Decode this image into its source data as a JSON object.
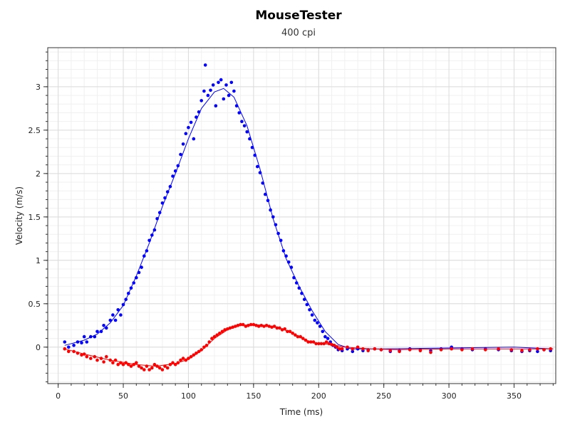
{
  "chart_data": {
    "type": "scatter",
    "title": "MouseTester",
    "subtitle": "400 cpi",
    "xlabel": "Time (ms)",
    "ylabel": "Velocity (m/s)",
    "xlim": [
      -8,
      382
    ],
    "ylim": [
      -0.42,
      3.45
    ],
    "x_ticks": [
      0,
      50,
      100,
      150,
      200,
      250,
      300,
      350
    ],
    "x_tick_labels": [
      "0",
      "50",
      "100",
      "150",
      "200",
      "250",
      "300",
      "350"
    ],
    "y_ticks": [
      0,
      0.5,
      1,
      1.5,
      2,
      2.5,
      3
    ],
    "y_tick_labels": [
      "0",
      "0.5",
      "1",
      "1.5",
      "2",
      "2.5",
      "3"
    ],
    "grid": true,
    "series": [
      {
        "color": "#0000ff",
        "points": [
          [
            5,
            0.06
          ],
          [
            8,
            0.0
          ],
          [
            12,
            0.02
          ],
          [
            15,
            0.06
          ],
          [
            18,
            0.05
          ],
          [
            20,
            0.12
          ],
          [
            22,
            0.06
          ],
          [
            25,
            0.12
          ],
          [
            28,
            0.12
          ],
          [
            30,
            0.18
          ],
          [
            33,
            0.18
          ],
          [
            35,
            0.25
          ],
          [
            37,
            0.22
          ],
          [
            40,
            0.31
          ],
          [
            42,
            0.37
          ],
          [
            44,
            0.31
          ],
          [
            46,
            0.43
          ],
          [
            48,
            0.37
          ],
          [
            50,
            0.49
          ],
          [
            52,
            0.55
          ],
          [
            54,
            0.62
          ],
          [
            56,
            0.68
          ],
          [
            58,
            0.74
          ],
          [
            60,
            0.8
          ],
          [
            62,
            0.86
          ],
          [
            64,
            0.92
          ],
          [
            66,
            1.05
          ],
          [
            68,
            1.11
          ],
          [
            70,
            1.23
          ],
          [
            72,
            1.29
          ],
          [
            74,
            1.35
          ],
          [
            76,
            1.48
          ],
          [
            78,
            1.55
          ],
          [
            80,
            1.66
          ],
          [
            82,
            1.72
          ],
          [
            84,
            1.79
          ],
          [
            86,
            1.85
          ],
          [
            88,
            1.97
          ],
          [
            90,
            2.03
          ],
          [
            92,
            2.09
          ],
          [
            94,
            2.22
          ],
          [
            96,
            2.34
          ],
          [
            98,
            2.46
          ],
          [
            100,
            2.53
          ],
          [
            102,
            2.59
          ],
          [
            104,
            2.4
          ],
          [
            106,
            2.65
          ],
          [
            108,
            2.71
          ],
          [
            110,
            2.84
          ],
          [
            112,
            2.95
          ],
          [
            113,
            3.25
          ],
          [
            115,
            2.9
          ],
          [
            117,
            2.96
          ],
          [
            119,
            3.02
          ],
          [
            121,
            2.78
          ],
          [
            123,
            3.05
          ],
          [
            125,
            3.08
          ],
          [
            127,
            2.86
          ],
          [
            129,
            3.02
          ],
          [
            131,
            2.9
          ],
          [
            133,
            3.05
          ],
          [
            135,
            2.95
          ],
          [
            137,
            2.78
          ],
          [
            139,
            2.7
          ],
          [
            141,
            2.6
          ],
          [
            143,
            2.55
          ],
          [
            145,
            2.48
          ],
          [
            147,
            2.4
          ],
          [
            149,
            2.3
          ],
          [
            151,
            2.21
          ],
          [
            153,
            2.08
          ],
          [
            155,
            2.01
          ],
          [
            157,
            1.89
          ],
          [
            159,
            1.76
          ],
          [
            161,
            1.69
          ],
          [
            163,
            1.58
          ],
          [
            165,
            1.5
          ],
          [
            167,
            1.41
          ],
          [
            169,
            1.31
          ],
          [
            171,
            1.23
          ],
          [
            173,
            1.11
          ],
          [
            175,
            1.05
          ],
          [
            177,
            0.98
          ],
          [
            179,
            0.92
          ],
          [
            181,
            0.8
          ],
          [
            183,
            0.74
          ],
          [
            185,
            0.68
          ],
          [
            187,
            0.62
          ],
          [
            189,
            0.55
          ],
          [
            191,
            0.49
          ],
          [
            193,
            0.43
          ],
          [
            195,
            0.37
          ],
          [
            197,
            0.31
          ],
          [
            199,
            0.28
          ],
          [
            201,
            0.24
          ],
          [
            203,
            0.18
          ],
          [
            205,
            0.12
          ],
          [
            207,
            0.1
          ],
          [
            209,
            0.06
          ],
          [
            211,
            0.02
          ],
          [
            213,
            0.0
          ],
          [
            215,
            -0.03
          ],
          [
            218,
            -0.04
          ],
          [
            222,
            -0.02
          ],
          [
            226,
            -0.05
          ],
          [
            230,
            -0.02
          ],
          [
            234,
            -0.04
          ],
          [
            238,
            -0.03
          ],
          [
            243,
            -0.02
          ],
          [
            248,
            -0.03
          ],
          [
            255,
            -0.05
          ],
          [
            262,
            -0.04
          ],
          [
            270,
            -0.02
          ],
          [
            278,
            -0.03
          ],
          [
            286,
            -0.04
          ],
          [
            294,
            -0.02
          ],
          [
            302,
            0.0
          ],
          [
            310,
            -0.02
          ],
          [
            318,
            -0.03
          ],
          [
            328,
            -0.02
          ],
          [
            338,
            -0.03
          ],
          [
            348,
            -0.04
          ],
          [
            356,
            -0.05
          ],
          [
            362,
            -0.04
          ],
          [
            368,
            -0.05
          ],
          [
            373,
            -0.03
          ],
          [
            378,
            -0.04
          ]
        ],
        "trend": [
          [
            5,
            0.02
          ],
          [
            20,
            0.08
          ],
          [
            30,
            0.15
          ],
          [
            40,
            0.28
          ],
          [
            50,
            0.48
          ],
          [
            60,
            0.82
          ],
          [
            70,
            1.2
          ],
          [
            80,
            1.62
          ],
          [
            90,
            2.0
          ],
          [
            100,
            2.4
          ],
          [
            110,
            2.75
          ],
          [
            120,
            2.94
          ],
          [
            127,
            2.98
          ],
          [
            135,
            2.88
          ],
          [
            145,
            2.55
          ],
          [
            155,
            2.05
          ],
          [
            165,
            1.48
          ],
          [
            175,
            1.02
          ],
          [
            185,
            0.7
          ],
          [
            195,
            0.42
          ],
          [
            205,
            0.18
          ],
          [
            215,
            0.03
          ],
          [
            225,
            -0.02
          ],
          [
            250,
            -0.02
          ],
          [
            300,
            -0.01
          ],
          [
            350,
            0.0
          ],
          [
            380,
            -0.02
          ]
        ]
      },
      {
        "color": "#ff0000",
        "points": [
          [
            5,
            -0.02
          ],
          [
            8,
            -0.05
          ],
          [
            12,
            -0.05
          ],
          [
            15,
            -0.07
          ],
          [
            18,
            -0.09
          ],
          [
            20,
            -0.08
          ],
          [
            22,
            -0.11
          ],
          [
            25,
            -0.13
          ],
          [
            28,
            -0.11
          ],
          [
            30,
            -0.15
          ],
          [
            33,
            -0.13
          ],
          [
            35,
            -0.17
          ],
          [
            37,
            -0.11
          ],
          [
            40,
            -0.15
          ],
          [
            42,
            -0.18
          ],
          [
            44,
            -0.15
          ],
          [
            46,
            -0.2
          ],
          [
            48,
            -0.18
          ],
          [
            50,
            -0.2
          ],
          [
            52,
            -0.18
          ],
          [
            54,
            -0.2
          ],
          [
            56,
            -0.22
          ],
          [
            58,
            -0.2
          ],
          [
            60,
            -0.18
          ],
          [
            62,
            -0.22
          ],
          [
            64,
            -0.24
          ],
          [
            66,
            -0.26
          ],
          [
            68,
            -0.22
          ],
          [
            70,
            -0.26
          ],
          [
            72,
            -0.24
          ],
          [
            74,
            -0.2
          ],
          [
            76,
            -0.22
          ],
          [
            78,
            -0.24
          ],
          [
            80,
            -0.26
          ],
          [
            82,
            -0.22
          ],
          [
            84,
            -0.24
          ],
          [
            86,
            -0.2
          ],
          [
            88,
            -0.18
          ],
          [
            90,
            -0.2
          ],
          [
            92,
            -0.18
          ],
          [
            94,
            -0.15
          ],
          [
            96,
            -0.13
          ],
          [
            98,
            -0.15
          ],
          [
            100,
            -0.13
          ],
          [
            102,
            -0.11
          ],
          [
            104,
            -0.09
          ],
          [
            106,
            -0.07
          ],
          [
            108,
            -0.05
          ],
          [
            110,
            -0.03
          ],
          [
            112,
            0.0
          ],
          [
            114,
            0.02
          ],
          [
            116,
            0.06
          ],
          [
            118,
            0.1
          ],
          [
            120,
            0.12
          ],
          [
            122,
            0.14
          ],
          [
            124,
            0.16
          ],
          [
            126,
            0.18
          ],
          [
            128,
            0.2
          ],
          [
            130,
            0.21
          ],
          [
            132,
            0.22
          ],
          [
            134,
            0.23
          ],
          [
            136,
            0.24
          ],
          [
            138,
            0.25
          ],
          [
            140,
            0.26
          ],
          [
            142,
            0.26
          ],
          [
            144,
            0.24
          ],
          [
            146,
            0.25
          ],
          [
            148,
            0.26
          ],
          [
            150,
            0.26
          ],
          [
            152,
            0.25
          ],
          [
            154,
            0.24
          ],
          [
            156,
            0.25
          ],
          [
            158,
            0.24
          ],
          [
            160,
            0.25
          ],
          [
            162,
            0.24
          ],
          [
            164,
            0.23
          ],
          [
            166,
            0.24
          ],
          [
            168,
            0.22
          ],
          [
            170,
            0.22
          ],
          [
            172,
            0.2
          ],
          [
            174,
            0.21
          ],
          [
            176,
            0.18
          ],
          [
            178,
            0.18
          ],
          [
            180,
            0.16
          ],
          [
            182,
            0.14
          ],
          [
            184,
            0.12
          ],
          [
            186,
            0.12
          ],
          [
            188,
            0.1
          ],
          [
            190,
            0.08
          ],
          [
            192,
            0.06
          ],
          [
            194,
            0.06
          ],
          [
            196,
            0.06
          ],
          [
            198,
            0.04
          ],
          [
            200,
            0.04
          ],
          [
            202,
            0.04
          ],
          [
            204,
            0.04
          ],
          [
            206,
            0.06
          ],
          [
            208,
            0.04
          ],
          [
            210,
            0.03
          ],
          [
            212,
            0.02
          ],
          [
            214,
            0.0
          ],
          [
            216,
            -0.02
          ],
          [
            218,
            -0.02
          ],
          [
            222,
            0.0
          ],
          [
            226,
            -0.02
          ],
          [
            230,
            0.0
          ],
          [
            234,
            -0.02
          ],
          [
            238,
            -0.04
          ],
          [
            243,
            -0.02
          ],
          [
            248,
            -0.03
          ],
          [
            255,
            -0.04
          ],
          [
            262,
            -0.05
          ],
          [
            270,
            -0.03
          ],
          [
            278,
            -0.04
          ],
          [
            286,
            -0.06
          ],
          [
            294,
            -0.03
          ],
          [
            302,
            -0.02
          ],
          [
            310,
            -0.03
          ],
          [
            318,
            -0.02
          ],
          [
            328,
            -0.03
          ],
          [
            338,
            -0.02
          ],
          [
            348,
            -0.03
          ],
          [
            356,
            -0.04
          ],
          [
            362,
            -0.03
          ],
          [
            368,
            -0.02
          ],
          [
            373,
            -0.03
          ],
          [
            378,
            -0.02
          ]
        ],
        "trend": [
          [
            5,
            -0.02
          ],
          [
            20,
            -0.08
          ],
          [
            40,
            -0.15
          ],
          [
            60,
            -0.2
          ],
          [
            75,
            -0.22
          ],
          [
            90,
            -0.19
          ],
          [
            100,
            -0.14
          ],
          [
            110,
            -0.04
          ],
          [
            120,
            0.1
          ],
          [
            130,
            0.2
          ],
          [
            140,
            0.25
          ],
          [
            150,
            0.26
          ],
          [
            160,
            0.25
          ],
          [
            170,
            0.22
          ],
          [
            180,
            0.16
          ],
          [
            190,
            0.08
          ],
          [
            200,
            0.04
          ],
          [
            210,
            0.03
          ],
          [
            220,
            0.0
          ],
          [
            240,
            -0.02
          ],
          [
            260,
            -0.03
          ],
          [
            300,
            -0.02
          ],
          [
            350,
            -0.02
          ],
          [
            380,
            -0.02
          ]
        ]
      }
    ]
  }
}
